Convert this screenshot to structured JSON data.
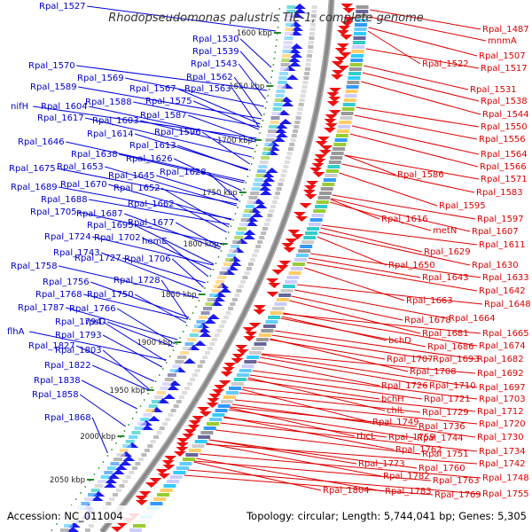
{
  "title": "Rhodopseudomonas palustris TIE-1, complete genome",
  "accession": "Accession: NC_011004",
  "topology": "Topology: circular; Length: 5,744,041 bp; Genes: 5,305",
  "colors": {
    "left_genes": "#0000cc",
    "right_genes": "#dd0000",
    "backbone": "#888888",
    "tick_marks": "#228822"
  },
  "ticks": [
    "1600 kbp",
    "1650 kbp",
    "1700 kbp",
    "1750 kbp",
    "1800 kbp",
    "1850 kbp",
    "1900 kbp",
    "1950 kbp",
    "2000 kbp",
    "2050 kbp"
  ],
  "left_labels": [
    "Rpal_1527",
    "Rpal_1530",
    "Rpal_1539",
    "Rpal_1543",
    "Rpal_1562",
    "Rpal_1570",
    "Rpal_1569",
    "Rpal_1589",
    "Rpal_1567",
    "Rpal_1563",
    "Rpal_1588",
    "Rpal_1575",
    "nifH",
    "Rpal_1604",
    "Rpal_1617",
    "Rpal_1587",
    "Rpal_1603",
    "Rpal_1596",
    "Rpal_1614",
    "Rpal_1646",
    "Rpal_1613",
    "Rpal_1638",
    "Rpal_1626",
    "Rpal_1675",
    "Rpal_1653",
    "Rpal_1645",
    "Rpal_1628",
    "Rpal_1689",
    "Rpal_1670",
    "Rpal_1652",
    "Rpal_1688",
    "Rpal_1662",
    "Rpal_1705",
    "Rpal_1687",
    "Rpal_1695",
    "Rpal_1677",
    "Rpal_1724",
    "Rpal_1702",
    "hemE",
    "Rpal_1743",
    "Rpal_1727",
    "Rpal_1706",
    "Rpal_1758",
    "Rpal_1756",
    "Rpal_1728",
    "Rpal_1768",
    "Rpal_1750",
    "Rpal_1787",
    "Rpal_1766",
    "Rpal_1794",
    "rpsD",
    "flhA",
    "Rpal_1793",
    "Rpal_1827",
    "Rpal_1803",
    "Rpal_1822",
    "Rpal_1838",
    "Rpal_1858",
    "Rpal_1868"
  ],
  "right_labels": [
    "Rpal_1487",
    "mnmA",
    "Rpal_1507",
    "Rpal_1522",
    "Rpal_1517",
    "Rpal_1531",
    "Rpal_1538",
    "Rpal_1544",
    "Rpal_1550",
    "Rpal_1556",
    "Rpal_1564",
    "Rpal_1566",
    "Rpal_1586",
    "Rpal_1571",
    "Rpal_1583",
    "Rpal_1595",
    "Rpal_1616",
    "Rpal_1597",
    "metN",
    "Rpal_1607",
    "Rpal_1611",
    "Rpal_1629",
    "Rpal_1650",
    "Rpal_1630",
    "Rpal_1643",
    "Rpal_1633",
    "Rpal_1642",
    "Rpal_1663",
    "Rpal_1648",
    "Rpal_1678",
    "Rpal_1664",
    "Rpal_1681",
    "Rpal_1665",
    "bchD",
    "Rpal_1686",
    "Rpal_1674",
    "Rpal_1707",
    "Rpal_1693",
    "Rpal_1682",
    "Rpal_1708",
    "Rpal_1692",
    "Rpal_1726",
    "Rpal_1710",
    "Rpal_1697",
    "bchH",
    "Rpal_1721",
    "Rpal_1703",
    "chlL",
    "Rpal_1729",
    "Rpal_1712",
    "rbcL",
    "Rpal_1749",
    "Rpal_1736",
    "Rpal_1720",
    "Rpal_1744",
    "Rpal_1730",
    "Rpal_1759",
    "Rpal_1751",
    "Rpal_1734",
    "Rpal_1762",
    "Rpal_1742",
    "Rpal_1773",
    "Rpal_1760",
    "Rpal_1782",
    "Rpal_1763",
    "Rpal_1748",
    "Rpal_1804",
    "Rpal_1783",
    "Rpal_1769",
    "Rpal_1755"
  ]
}
